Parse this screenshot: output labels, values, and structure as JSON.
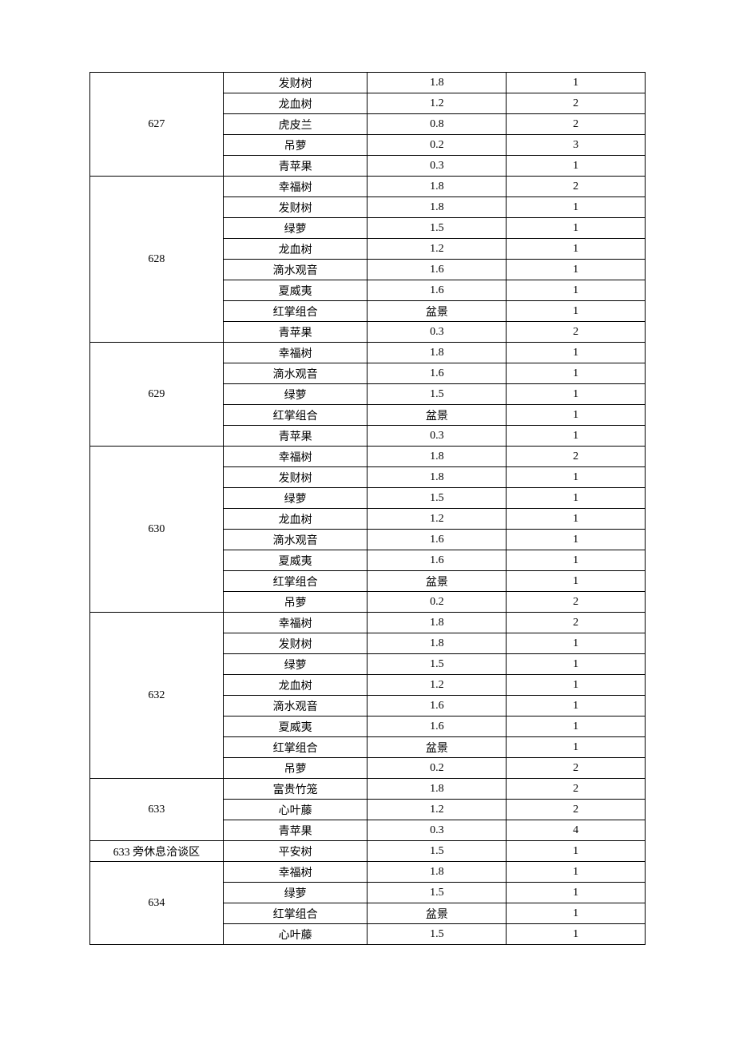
{
  "table": {
    "type": "table",
    "border_color": "#000000",
    "background_color": "#ffffff",
    "font_family": "SimSun",
    "font_size_pt": 10.5,
    "column_widths_pct": [
      24,
      26,
      25,
      25
    ],
    "column_align": [
      "center",
      "center",
      "center",
      "center"
    ],
    "groups": [
      {
        "label": "627",
        "rows": [
          [
            "发财树",
            "1.8",
            "1"
          ],
          [
            "龙血树",
            "1.2",
            "2"
          ],
          [
            "虎皮兰",
            "0.8",
            "2"
          ],
          [
            "吊萝",
            "0.2",
            "3"
          ],
          [
            "青苹果",
            "0.3",
            "1"
          ]
        ]
      },
      {
        "label": "628",
        "rows": [
          [
            "幸福树",
            "1.8",
            "2"
          ],
          [
            "发财树",
            "1.8",
            "1"
          ],
          [
            "绿萝",
            "1.5",
            "1"
          ],
          [
            "龙血树",
            "1.2",
            "1"
          ],
          [
            "滴水观音",
            "1.6",
            "1"
          ],
          [
            "夏威夷",
            "1.6",
            "1"
          ],
          [
            "红掌组合",
            "盆景",
            "1"
          ],
          [
            "青苹果",
            "0.3",
            "2"
          ]
        ]
      },
      {
        "label": "629",
        "rows": [
          [
            "幸福树",
            "1.8",
            "1"
          ],
          [
            "滴水观音",
            "1.6",
            "1"
          ],
          [
            "绿萝",
            "1.5",
            "1"
          ],
          [
            "红掌组合",
            "盆景",
            "1"
          ],
          [
            "青苹果",
            "0.3",
            "1"
          ]
        ]
      },
      {
        "label": "630",
        "rows": [
          [
            "幸福树",
            "1.8",
            "2"
          ],
          [
            "发财树",
            "1.8",
            "1"
          ],
          [
            "绿萝",
            "1.5",
            "1"
          ],
          [
            "龙血树",
            "1.2",
            "1"
          ],
          [
            "滴水观音",
            "1.6",
            "1"
          ],
          [
            "夏威夷",
            "1.6",
            "1"
          ],
          [
            "红掌组合",
            "盆景",
            "1"
          ],
          [
            "吊萝",
            "0.2",
            "2"
          ]
        ]
      },
      {
        "label": "632",
        "rows": [
          [
            "幸福树",
            "1.8",
            "2"
          ],
          [
            "发财树",
            "1.8",
            "1"
          ],
          [
            "绿萝",
            "1.5",
            "1"
          ],
          [
            "龙血树",
            "1.2",
            "1"
          ],
          [
            "滴水观音",
            "1.6",
            "1"
          ],
          [
            "夏威夷",
            "1.6",
            "1"
          ],
          [
            "红掌组合",
            "盆景",
            "1"
          ],
          [
            "吊萝",
            "0.2",
            "2"
          ]
        ]
      },
      {
        "label": "633",
        "rows": [
          [
            "富贵竹笼",
            "1.8",
            "2"
          ],
          [
            "心叶藤",
            "1.2",
            "2"
          ],
          [
            "青苹果",
            "0.3",
            "4"
          ]
        ]
      },
      {
        "label": "633 旁休息洽谈区",
        "rows": [
          [
            "平安树",
            "1.5",
            "1"
          ]
        ]
      },
      {
        "label": "634",
        "rows": [
          [
            "幸福树",
            "1.8",
            "1"
          ],
          [
            "绿萝",
            "1.5",
            "1"
          ],
          [
            "红掌组合",
            "盆景",
            "1"
          ],
          [
            "心叶藤",
            "1.5",
            "1"
          ]
        ]
      }
    ]
  }
}
